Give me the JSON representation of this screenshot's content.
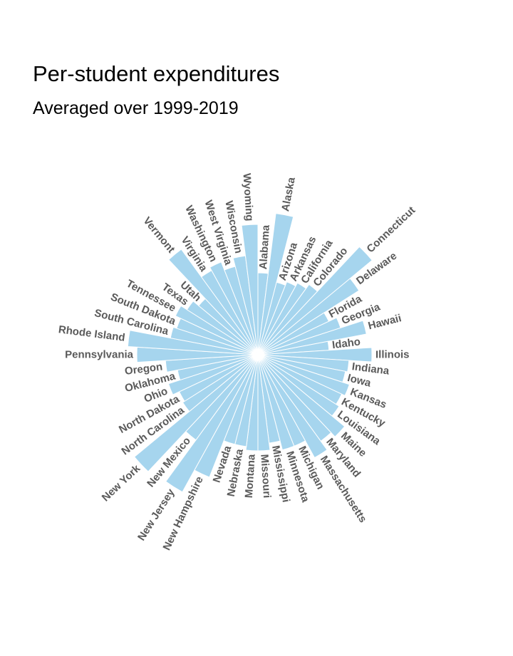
{
  "chart_data": {
    "type": "bar",
    "coordinate_system": "polar",
    "title": "Per-student expenditures",
    "subtitle": "Averaged over 1999-2019",
    "color": "#a6d5ee",
    "label_color": "#5a5a5a",
    "categories": [
      "Alabama",
      "Alaska",
      "Arizona",
      "Arkansas",
      "California",
      "Colorado",
      "Connecticut",
      "Delaware",
      "Florida",
      "Georgia",
      "Hawaii",
      "Idaho",
      "Illinois",
      "Indiana",
      "Iowa",
      "Kansas",
      "Kentucky",
      "Louisiana",
      "Maine",
      "Maryland",
      "Massachusetts",
      "Michigan",
      "Minnesota",
      "Mississippi",
      "Missouri",
      "Montana",
      "Nebraska",
      "Nevada",
      "New Hampshire",
      "New Jersey",
      "New Mexico",
      "New York",
      "North Carolina",
      "North Dakota",
      "Ohio",
      "Oklahoma",
      "Oregon",
      "Pennsylvania",
      "Rhode Island",
      "South Carolina",
      "South Dakota",
      "Tennessee",
      "Texas",
      "Utah",
      "Vermont",
      "Virginia",
      "Washington",
      "West Virginia",
      "Wisconsin",
      "Wyoming"
    ],
    "values": [
      115,
      200,
      105,
      110,
      115,
      122,
      208,
      168,
      110,
      122,
      155,
      100,
      160,
      128,
      125,
      135,
      130,
      135,
      158,
      150,
      165,
      138,
      138,
      125,
      135,
      135,
      130,
      130,
      185,
      220,
      148,
      225,
      125,
      122,
      132,
      115,
      130,
      170,
      183,
      125,
      120,
      128,
      118,
      108,
      183,
      135,
      140,
      128,
      140,
      183
    ]
  }
}
